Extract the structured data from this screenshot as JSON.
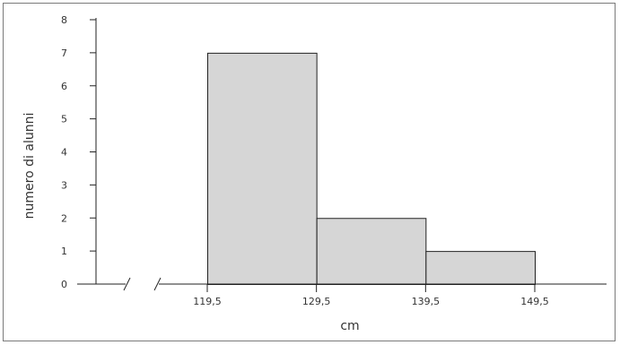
{
  "chart_data": {
    "type": "bar",
    "subtype": "histogram",
    "title": "",
    "xlabel": "cm",
    "ylabel": "numero di alunni",
    "bins": [
      {
        "from": 119.5,
        "to": 129.5,
        "value": 7
      },
      {
        "from": 129.5,
        "to": 139.5,
        "value": 2
      },
      {
        "from": 139.5,
        "to": 149.5,
        "value": 1
      }
    ],
    "x_ticks": [
      "119,5",
      "129,5",
      "139,5",
      "149,5"
    ],
    "x_tick_values": [
      119.5,
      129.5,
      139.5,
      149.5
    ],
    "y_ticks": [
      "0",
      "1",
      "2",
      "3",
      "4",
      "5",
      "6",
      "7",
      "8"
    ],
    "ylim": [
      0,
      8
    ],
    "x_axis_break": true,
    "grid": false,
    "bar_fill": "#d6d6d6",
    "bar_stroke": "#222222"
  }
}
